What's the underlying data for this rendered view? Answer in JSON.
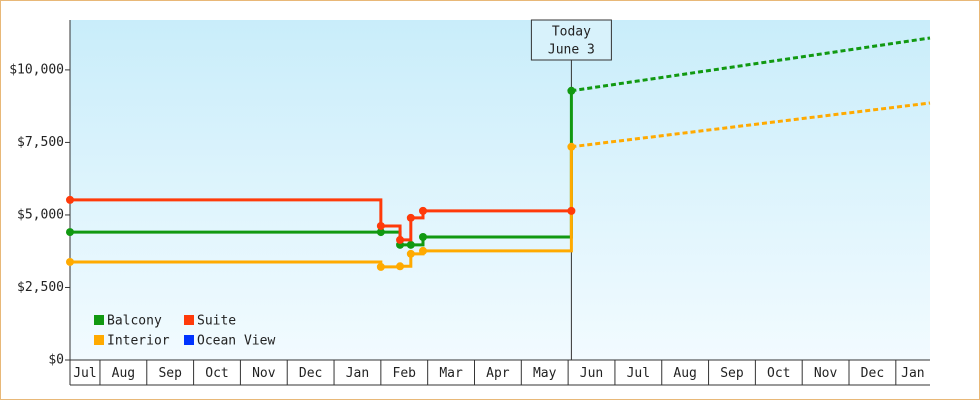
{
  "chart_data": {
    "type": "line",
    "step": true,
    "xlim": [
      0.36,
      18.73
    ],
    "ylim": [
      0,
      11720
    ],
    "xticks": [
      {
        "value": 0,
        "label": "Jul"
      },
      {
        "value": 1,
        "label": "Aug"
      },
      {
        "value": 2,
        "label": "Sep"
      },
      {
        "value": 3,
        "label": "Oct"
      },
      {
        "value": 4,
        "label": "Nov"
      },
      {
        "value": 5,
        "label": "Dec"
      },
      {
        "value": 6,
        "label": "Jan"
      },
      {
        "value": 7,
        "label": "Feb"
      },
      {
        "value": 8,
        "label": "Mar"
      },
      {
        "value": 9,
        "label": "Apr"
      },
      {
        "value": 10,
        "label": "May"
      },
      {
        "value": 11,
        "label": "Jun"
      },
      {
        "value": 12,
        "label": "Jul"
      },
      {
        "value": 13,
        "label": "Aug"
      },
      {
        "value": 14,
        "label": "Sep"
      },
      {
        "value": 15,
        "label": "Oct"
      },
      {
        "value": 16,
        "label": "Nov"
      },
      {
        "value": 17,
        "label": "Dec"
      },
      {
        "value": 18,
        "label": "Jan"
      }
    ],
    "yticks": [
      {
        "value": 0,
        "label": "$0"
      },
      {
        "value": 2500,
        "label": "$2,500"
      },
      {
        "value": 5000,
        "label": "$5,000"
      },
      {
        "value": 7500,
        "label": "$7,500"
      },
      {
        "value": 10000,
        "label": "$10,000"
      }
    ],
    "legend": "lower left",
    "annotation": {
      "x": 11.07,
      "lines": [
        "Today",
        "June 3"
      ]
    },
    "series": [
      {
        "name": "Balcony",
        "color": "#119911",
        "x": [
          0.36,
          7.0,
          7.41,
          7.64,
          7.9,
          11.07
        ],
        "values": [
          4410,
          4410,
          3970,
          3970,
          4240,
          9280
        ],
        "forecast_x": [
          11.07,
          18.73
        ],
        "forecast_values": [
          9280,
          11100
        ]
      },
      {
        "name": "Interior",
        "color": "#ffaa00",
        "x": [
          0.36,
          7.0,
          7.41,
          7.64,
          7.9,
          11.07
        ],
        "values": [
          3380,
          3210,
          3230,
          3660,
          3760,
          7350
        ],
        "forecast_x": [
          11.07,
          18.73
        ],
        "forecast_values": [
          7350,
          8860
        ]
      },
      {
        "name": "Suite",
        "color": "#ff3a0a",
        "x": [
          0.36,
          7.0,
          7.41,
          7.64,
          7.9,
          11.07
        ],
        "values": [
          5520,
          4620,
          4140,
          4900,
          5140,
          5140
        ]
      },
      {
        "name": "Ocean View",
        "color": "#0033ff",
        "x": [],
        "values": []
      }
    ]
  }
}
